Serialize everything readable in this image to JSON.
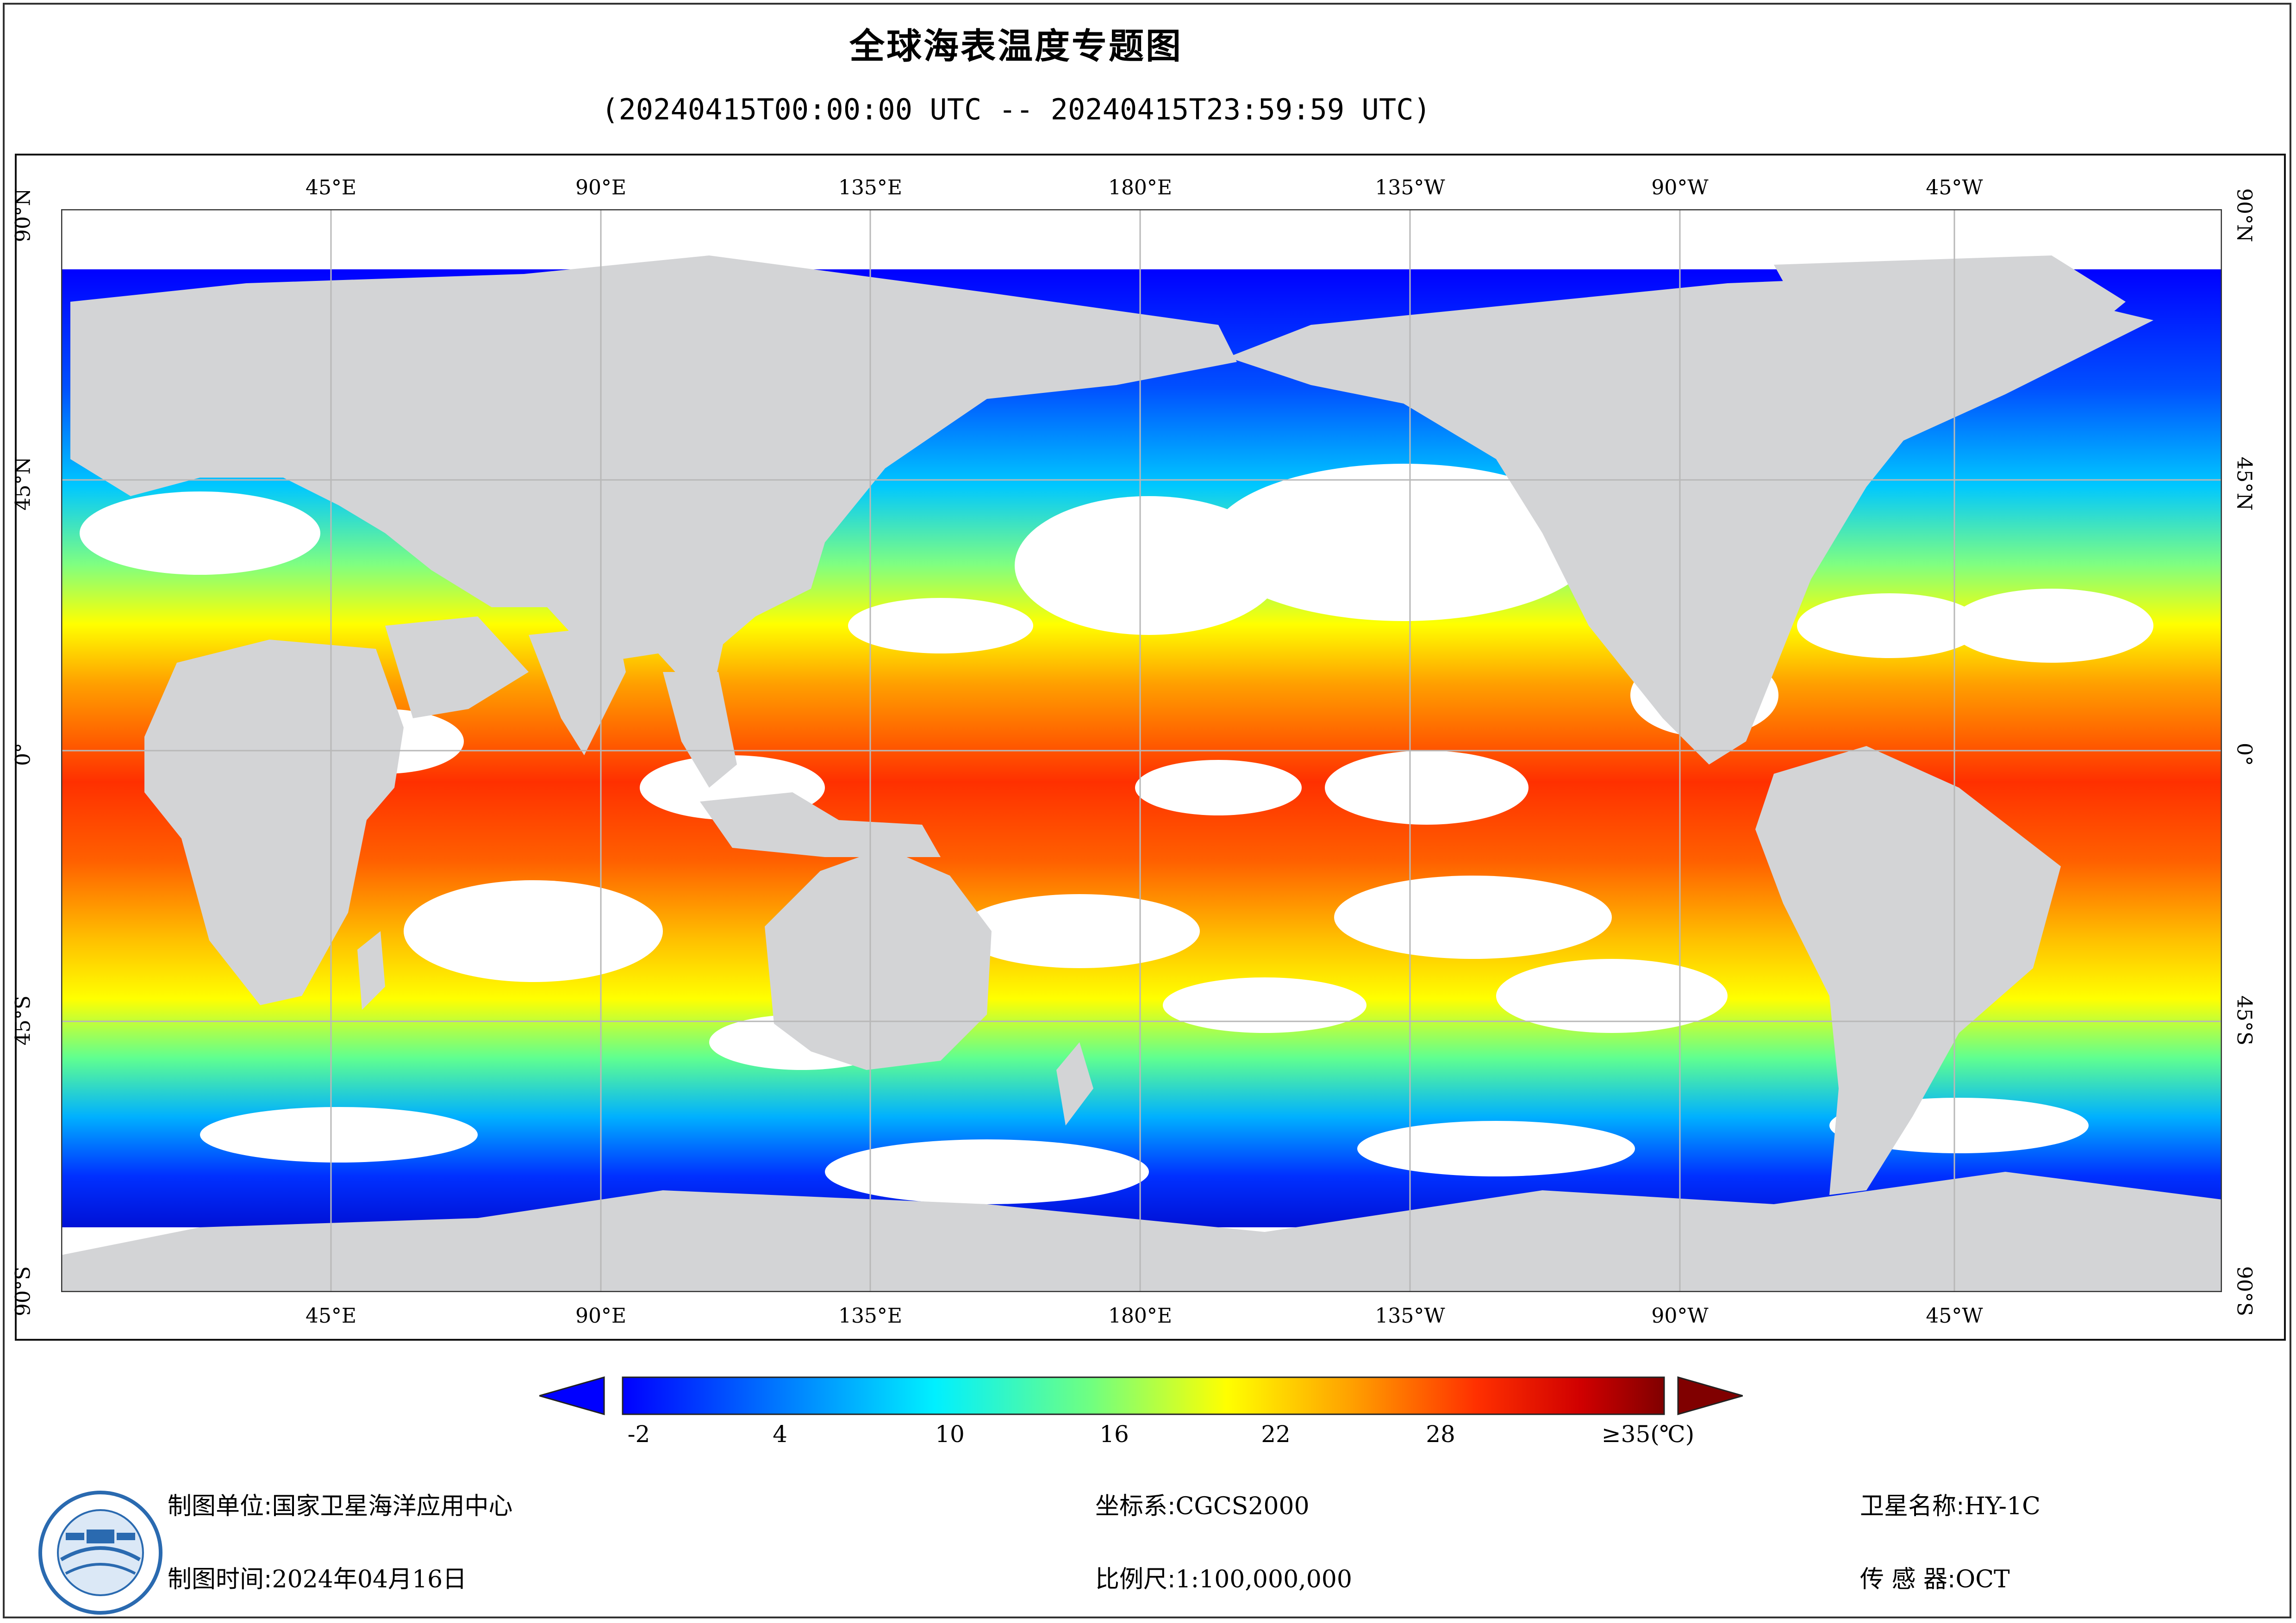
{
  "title": "全球海表温度专题图",
  "subtitle": "(20240415T00:00:00 UTC -- 20240415T23:59:59 UTC)",
  "lon_ticks": [
    "45°E",
    "90°E",
    "135°E",
    "180°E",
    "135°W",
    "90°W",
    "45°W"
  ],
  "lat_ticks": [
    "90°N",
    "45°N",
    "0°",
    "45°S",
    "90°S"
  ],
  "legend": {
    "labels": [
      "-2",
      "4",
      "10",
      "16",
      "22",
      "28",
      "≥35(℃)"
    ],
    "min": -2,
    "max": 35,
    "colors": [
      "#0000ff",
      "#0080ff",
      "#00e0ff",
      "#60ff90",
      "#ffff00",
      "#ffa000",
      "#ff4000",
      "#c00000",
      "#800000"
    ]
  },
  "footer": {
    "unit_label": "制图单位:",
    "unit_value": "国家卫星海洋应用中心",
    "time_label": "制图时间:",
    "time_value": "2024年04月16日",
    "crs_label": "坐标系:",
    "crs_value": "CGCS2000",
    "scale_label": "比例尺:",
    "scale_value": "1:100,000,000",
    "satellite_label": "卫星名称:",
    "satellite_value": "HY-1C",
    "sensor_label": "传 感 器:",
    "sensor_value": "OCT"
  },
  "colors": {
    "land": "#d3d4d6",
    "no_data": "#ffffff",
    "grid": "#b8b8b8"
  }
}
